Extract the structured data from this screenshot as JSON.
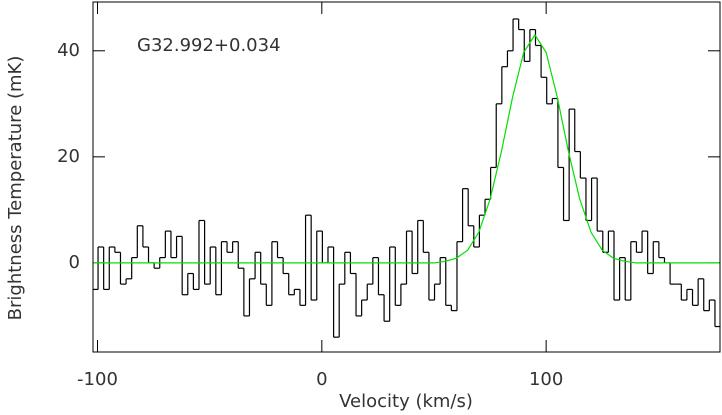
{
  "chart_data": {
    "type": "line",
    "annotation": "G32.992+0.034",
    "xlabel": "Velocity (km/s)",
    "ylabel": "Brightness Temperature (mK)",
    "xlim": [
      -102,
      177.5
    ],
    "ylim": [
      -16.8,
      49.2
    ],
    "xticks": [
      -100,
      0,
      100
    ],
    "yticks": [
      0,
      20,
      40
    ],
    "series": [
      {
        "type": "step",
        "color": "#000000",
        "x": [
          -101,
          -98.5,
          -96,
          -93.5,
          -91,
          -88.5,
          -86,
          -83.5,
          -81,
          -78.5,
          -76,
          -73.5,
          -71,
          -68.5,
          -66,
          -63.5,
          -61,
          -58.5,
          -56,
          -53.5,
          -51,
          -48.5,
          -46,
          -43.5,
          -41,
          -38.5,
          -36,
          -33.5,
          -31,
          -28.5,
          -26,
          -23.5,
          -21,
          -18.5,
          -16,
          -13.5,
          -11,
          -8.5,
          -6,
          -3.5,
          -1,
          1.5,
          4,
          6.5,
          9,
          11.5,
          14,
          16.5,
          19,
          21.5,
          24,
          26.5,
          29,
          31.5,
          34,
          36.5,
          39,
          41.5,
          44,
          46.5,
          49,
          51.5,
          54,
          56.5,
          59,
          61.5,
          64,
          66.5,
          69,
          71.5,
          74,
          76.5,
          79,
          81.5,
          84,
          86.5,
          89,
          91.5,
          94,
          96.5,
          99,
          101.5,
          104,
          106.5,
          109,
          111.5,
          114,
          116.5,
          119,
          121.5,
          124,
          126.5,
          129,
          131.5,
          134,
          136.5,
          139,
          141.5,
          144,
          146.5,
          149,
          151.5,
          154,
          156.5,
          159,
          161.5,
          164,
          166.5,
          169,
          171.5,
          174,
          176.5
        ],
        "values": [
          -5,
          3,
          -5,
          3,
          2,
          -4,
          -3,
          1,
          7,
          3,
          0,
          -1,
          1,
          6,
          1,
          5,
          -6,
          -2,
          -5,
          8,
          -4,
          3,
          -6,
          4,
          2,
          4,
          -1,
          -10,
          -3,
          2,
          -4,
          -8,
          4,
          1,
          -2,
          -6,
          -5,
          -8,
          9,
          -7,
          6,
          0,
          3,
          -14,
          -4,
          2,
          -2,
          -10,
          -7,
          -4,
          1,
          -6,
          -11,
          3,
          -8,
          -4,
          6,
          -2,
          8,
          2,
          -7,
          -4,
          1,
          -8,
          -9,
          4,
          14,
          7,
          3,
          9,
          12,
          18,
          30,
          37,
          40,
          46,
          44,
          38,
          44,
          41,
          35,
          30,
          31,
          18,
          8,
          29,
          21,
          16,
          8,
          16,
          6,
          2,
          6,
          -7,
          1,
          -7,
          4,
          2,
          6,
          -2,
          4,
          1,
          0,
          -4,
          -4,
          -7,
          -5,
          -8,
          -3,
          -9,
          -7,
          -12
        ]
      },
      {
        "type": "line",
        "color": "#00e000",
        "x": [
          -102,
          50,
          55,
          60,
          65,
          70,
          75,
          80,
          85,
          90,
          95,
          100,
          105,
          110,
          115,
          120,
          125,
          130,
          135,
          140,
          177.5
        ],
        "values": [
          0,
          0,
          0.3,
          0.9,
          2.4,
          5.8,
          12.0,
          20.9,
          31.2,
          39.7,
          43,
          39.7,
          31.2,
          20.9,
          12.0,
          5.8,
          2.4,
          0.9,
          0.3,
          0,
          0
        ]
      }
    ]
  }
}
